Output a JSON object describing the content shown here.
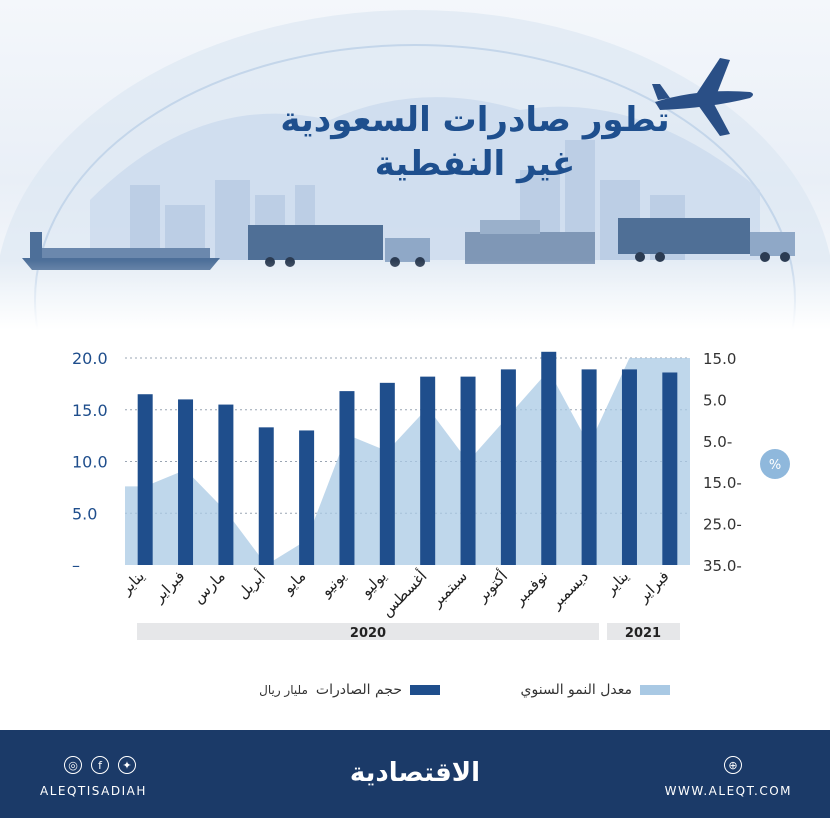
{
  "title_line1": "تطور صادرات السعودية",
  "title_line2": "غير النفطية",
  "chart_data": {
    "type": "bar",
    "categories": [
      "يناير",
      "فبراير",
      "مارس",
      "أبريل",
      "مايو",
      "يونيو",
      "يوليو",
      "أغسطس",
      "سبتمبر",
      "أكتوبر",
      "نوفمبر",
      "ديسمبر",
      "يناير",
      "فبراير"
    ],
    "series": [
      {
        "name": "حجم الصادرات",
        "type": "bar",
        "axis": "left",
        "values": [
          16.5,
          16.0,
          15.5,
          13.3,
          13.0,
          16.8,
          17.6,
          18.2,
          18.2,
          18.9,
          20.6,
          18.9,
          18.9,
          18.6
        ]
      },
      {
        "name": "معدل النمو السنوي",
        "type": "area",
        "axis": "right",
        "values": [
          -16.0,
          -12.0,
          -22.0,
          -35.0,
          -29.0,
          -3.5,
          -7.5,
          3.0,
          -10.0,
          1.0,
          12.0,
          -6.0,
          15.0,
          15.0
        ]
      }
    ],
    "left_axis": {
      "ticks": [
        "20.0",
        "15.0",
        "10.0",
        "5.0",
        "–"
      ],
      "min": 0,
      "max": 20
    },
    "right_axis": {
      "ticks": [
        "15.0",
        "5.0",
        "5.0-",
        "15.0-",
        "25.0-",
        "35.0-"
      ],
      "min": -35,
      "max": 15
    },
    "unit_badge": "%",
    "year_bands": [
      {
        "label": "2020"
      },
      {
        "label": "2021"
      }
    ]
  },
  "legend": {
    "bars_label": "حجم الصادرات",
    "bars_unit": "مليار ريال",
    "area_label": "معدل النمو السنوي"
  },
  "footer": {
    "brand": "الاقتصادية",
    "handle": "ALEQTISADIAH",
    "site": "WWW.ALEQT.COM"
  },
  "icons": [
    "instagram-icon",
    "facebook-icon",
    "twitter-icon",
    "website-icon",
    "airplane-icon",
    "globe-icon"
  ],
  "colors": {
    "bar": "#1f4e8c",
    "area": "#a9c9e4",
    "footer": "#1b3a68",
    "title": "#1e4f8e"
  }
}
